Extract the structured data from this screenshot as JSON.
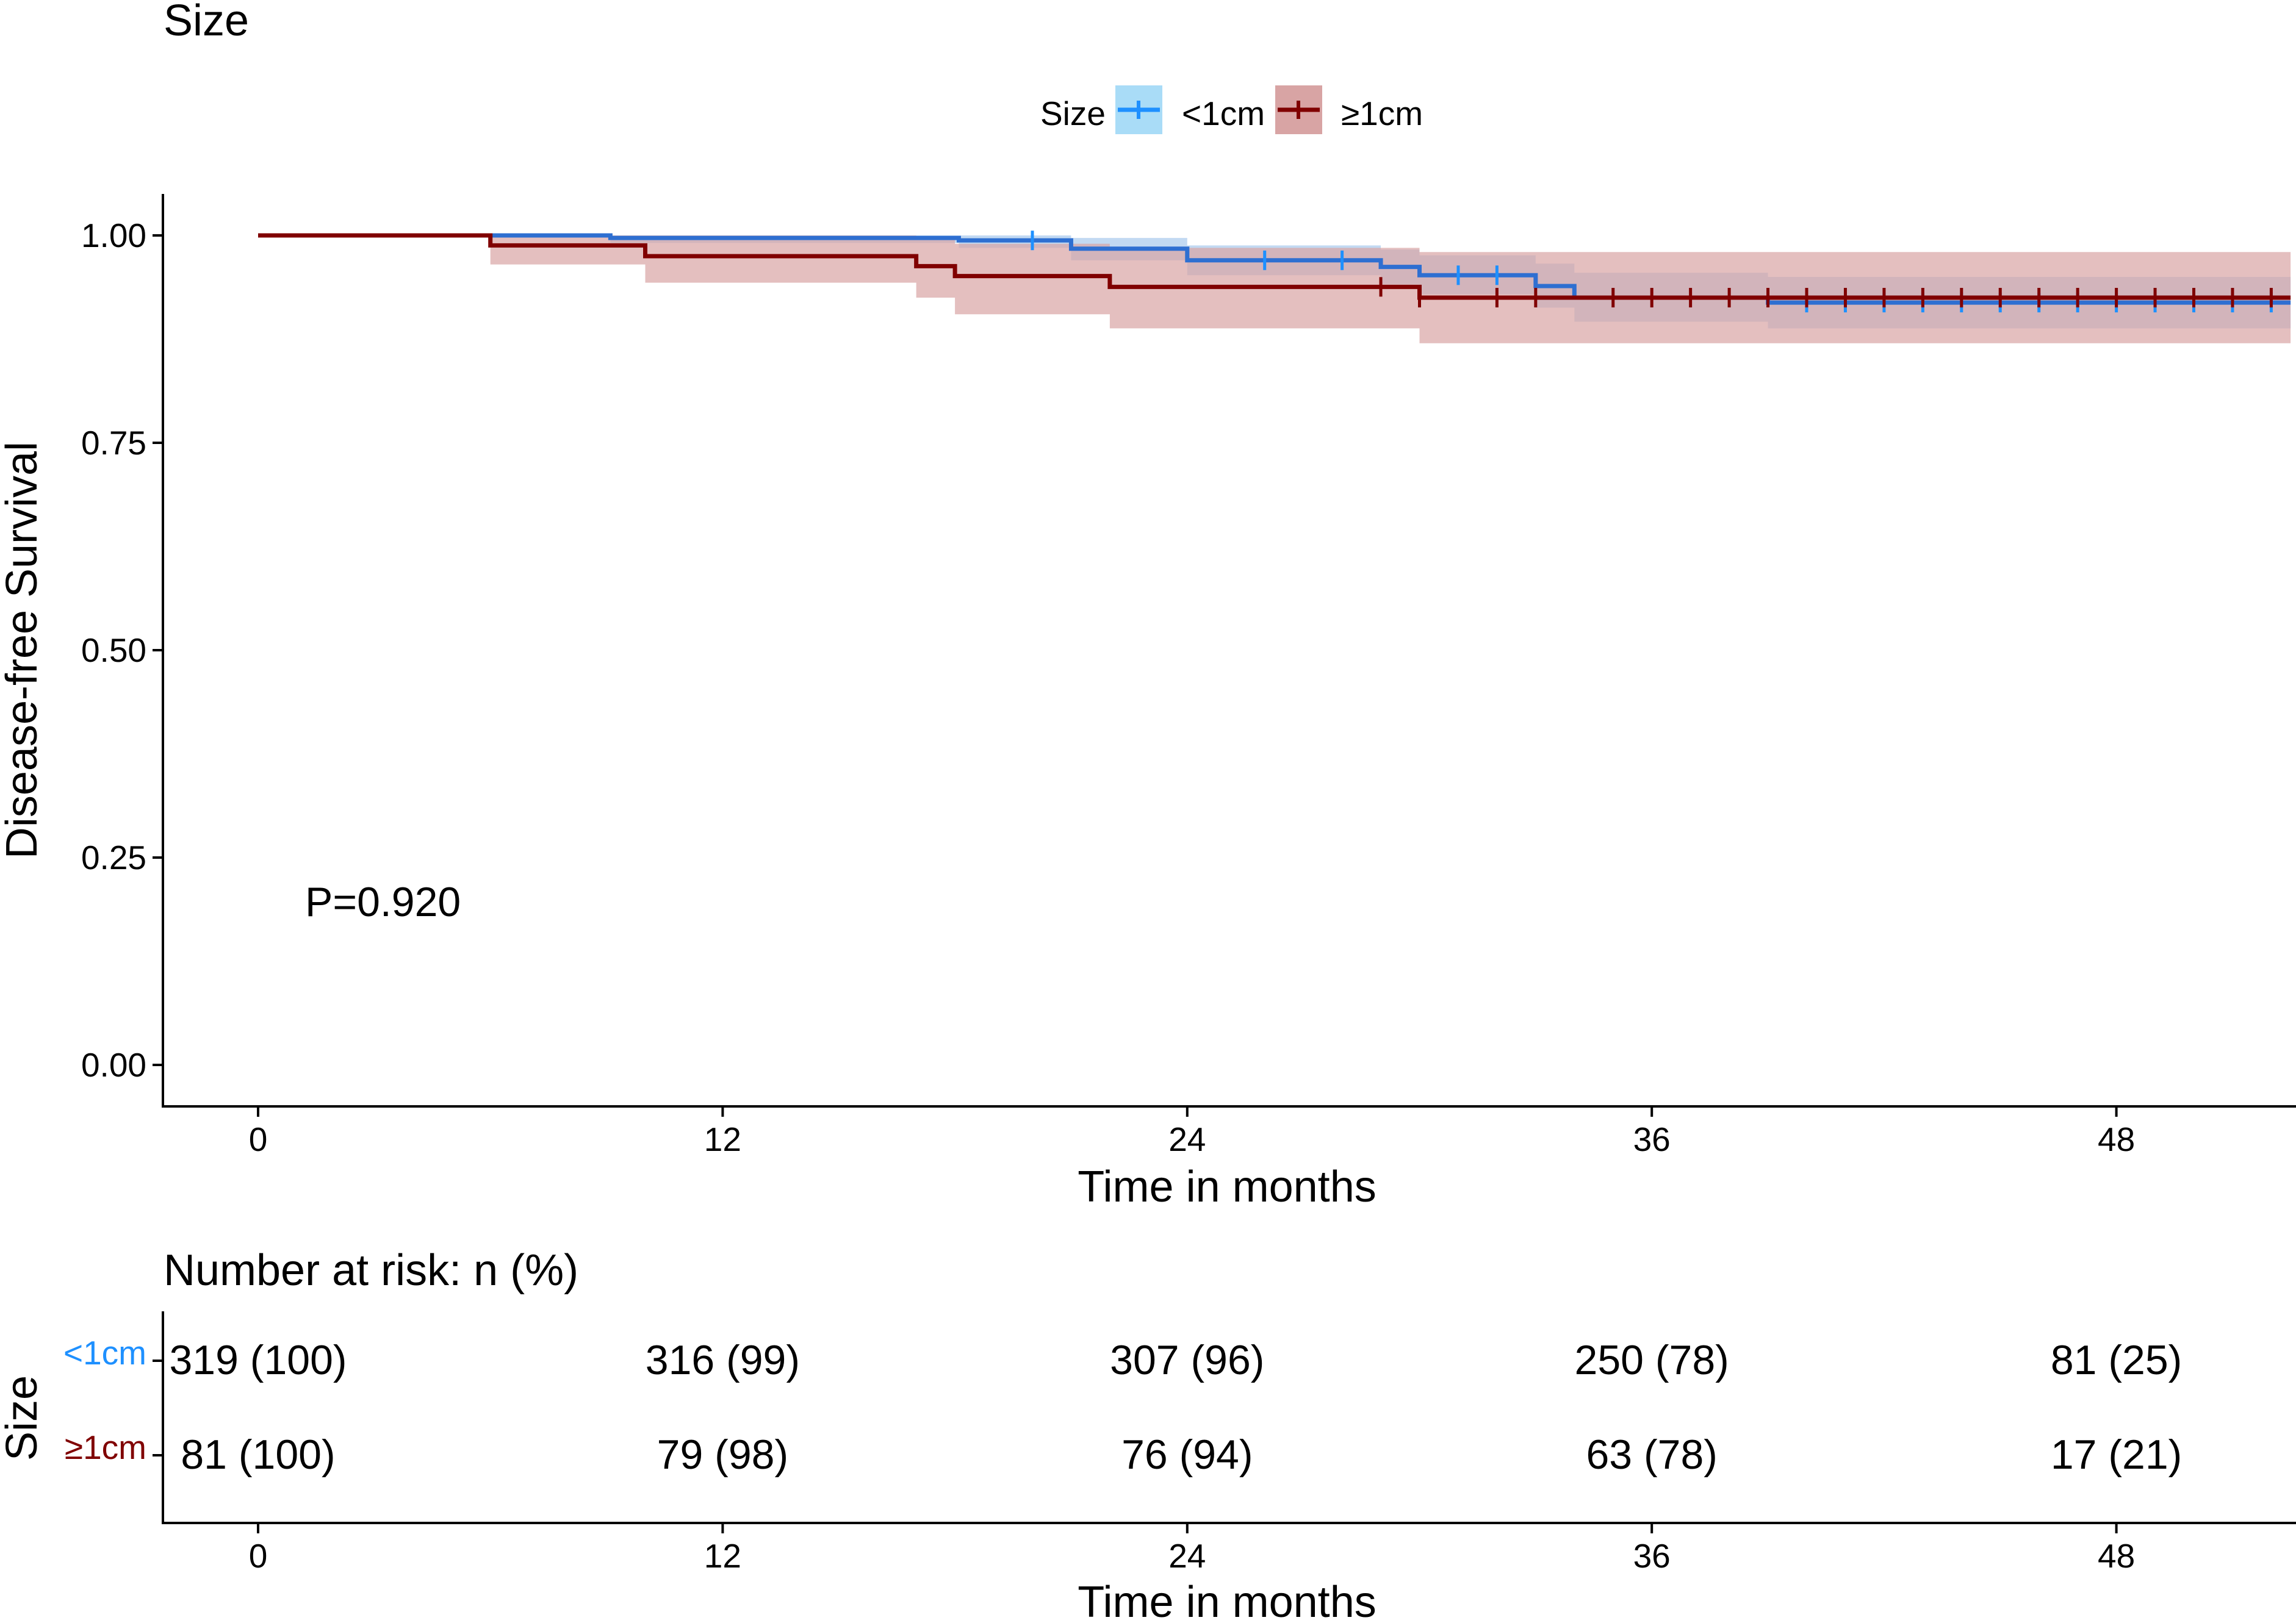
{
  "chart_data": [
    {
      "type": "line",
      "subtype": "kaplan-meier",
      "title": "Size",
      "xlabel": "Time in months",
      "ylabel": "Disease-free Survival",
      "xlim": [
        0,
        52.5
      ],
      "ylim": [
        0,
        1
      ],
      "xticks": [
        0,
        12,
        24,
        36,
        48
      ],
      "xtick_labels": [
        "0",
        "12",
        "24",
        "36",
        "48"
      ],
      "yticks": [
        0,
        0.25,
        0.5,
        0.75,
        1
      ],
      "ytick_labels": [
        "0.00",
        "0.25",
        "0.50",
        "0.75",
        "1.00"
      ],
      "legend": {
        "title": "Size",
        "position": "top",
        "entries": [
          {
            "label": "<1cm",
            "color": "#1e90ff",
            "fill": "#a9dcf7"
          },
          {
            "label": "≥1cm",
            "color": "#800000",
            "fill": "#d8a4a4"
          }
        ]
      },
      "annotation": "P=0.920",
      "series": [
        {
          "name": "<1cm",
          "color": "#2e6fd1",
          "censor_color": "#1e90ff",
          "band_color": "#8fb9e8",
          "steps": [
            [
              0,
              1.0
            ],
            [
              9.1,
              0.997
            ],
            [
              18.1,
              0.994
            ],
            [
              21,
              0.984
            ],
            [
              24,
              0.97
            ],
            [
              29,
              0.962
            ],
            [
              30,
              0.952
            ],
            [
              33,
              0.939
            ],
            [
              34,
              0.925
            ],
            [
              39,
              0.919
            ],
            [
              52.5,
              0.919
            ]
          ],
          "upper": [
            [
              0,
              1.0
            ],
            [
              9.1,
              1.0
            ],
            [
              18.1,
              1.0
            ],
            [
              21,
              0.997
            ],
            [
              24,
              0.988
            ],
            [
              29,
              0.983
            ],
            [
              30,
              0.976
            ],
            [
              33,
              0.966
            ],
            [
              34,
              0.955
            ],
            [
              39,
              0.95
            ],
            [
              52.5,
              0.95
            ]
          ],
          "lower": [
            [
              0,
              1.0
            ],
            [
              9.1,
              0.991
            ],
            [
              18.1,
              0.985
            ],
            [
              21,
              0.97
            ],
            [
              24,
              0.952
            ],
            [
              29,
              0.941
            ],
            [
              30,
              0.929
            ],
            [
              33,
              0.913
            ],
            [
              34,
              0.896
            ],
            [
              39,
              0.888
            ],
            [
              52.5,
              0.888
            ]
          ],
          "censor_times": [
            20,
            26,
            28,
            31,
            32,
            40,
            41,
            42,
            43,
            44,
            45,
            46,
            47,
            48,
            49,
            50,
            51,
            52
          ]
        },
        {
          "name": "≥1cm",
          "color": "#800000",
          "censor_color": "#800000",
          "band_color": "#d8a4a4",
          "steps": [
            [
              0,
              1.0
            ],
            [
              6,
              0.988
            ],
            [
              10,
              0.975
            ],
            [
              17,
              0.963
            ],
            [
              18,
              0.951
            ],
            [
              22,
              0.938
            ],
            [
              30,
              0.925
            ],
            [
              52.5,
              0.925
            ]
          ],
          "upper": [
            [
              0,
              1.0
            ],
            [
              6,
              1.0
            ],
            [
              10,
              1.0
            ],
            [
              17,
              0.995
            ],
            [
              18,
              0.99
            ],
            [
              22,
              0.985
            ],
            [
              30,
              0.98
            ],
            [
              52.5,
              0.985
            ]
          ],
          "lower": [
            [
              0,
              1.0
            ],
            [
              6,
              0.965
            ],
            [
              10,
              0.943
            ],
            [
              17,
              0.925
            ],
            [
              18,
              0.905
            ],
            [
              22,
              0.888
            ],
            [
              30,
              0.87
            ],
            [
              52.5,
              0.87
            ]
          ],
          "censor_times": [
            29,
            30,
            32,
            33,
            35,
            36,
            37,
            38,
            39,
            40,
            41,
            42,
            43,
            44,
            45,
            46,
            47,
            48,
            49,
            50,
            51,
            52
          ]
        }
      ]
    },
    {
      "type": "table",
      "title": "Number at risk: n (%)",
      "xlabel": "Time in months",
      "ylabel": "Size",
      "xlim": [
        0,
        52.5
      ],
      "xticks": [
        0,
        12,
        24,
        36,
        48
      ],
      "xtick_labels": [
        "0",
        "12",
        "24",
        "36",
        "48"
      ],
      "rows": [
        {
          "label": "<1cm",
          "color": "#1e90ff",
          "values": [
            "319 (100)",
            "316 (99)",
            "307 (96)",
            "250 (78)",
            "81 (25)"
          ]
        },
        {
          "label": "≥1cm",
          "color": "#800000",
          "values": [
            "81 (100)",
            "79 (98)",
            "76 (94)",
            "63 (78)",
            "17 (21)"
          ]
        }
      ]
    }
  ]
}
